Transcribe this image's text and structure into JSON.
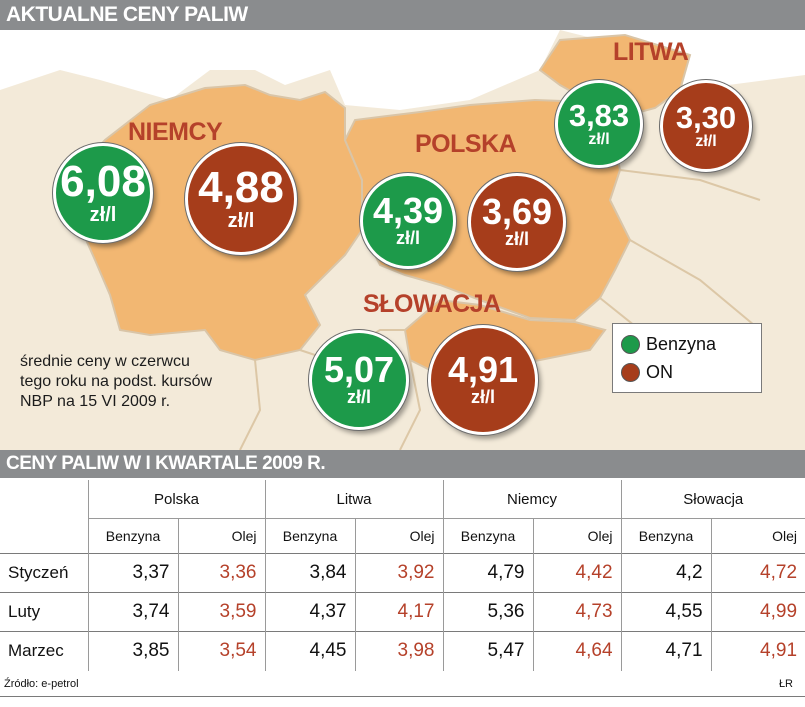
{
  "header": {
    "title": "AKTUALNE CENY PALIW"
  },
  "chart_data": [
    {
      "type": "map-bubbles",
      "title": "AKTUALNE CENY PALIW",
      "unit": "zł/l",
      "countries": [
        {
          "name": "NIEMCY",
          "benzyna": "6,08",
          "on": "4,88"
        },
        {
          "name": "POLSKA",
          "benzyna": "4,39",
          "on": "3,69"
        },
        {
          "name": "LITWA",
          "benzyna": "3,83",
          "on": "3,30"
        },
        {
          "name": "SŁOWACJA",
          "benzyna": "5,07",
          "on": "4,91"
        }
      ],
      "note": "średnie ceny w czerwcu\ntego roku na podst. kursów\nNBP na 15 VI 2009 r.",
      "legend": [
        {
          "label": "Benzyna",
          "color": "#1d9a4a"
        },
        {
          "label": "ON",
          "color": "#a63d1b"
        }
      ]
    },
    {
      "type": "table",
      "title": "CENY PALIW W I KWARTALE 2009 R.",
      "countries": [
        "Polska",
        "Litwa",
        "Niemcy",
        "Słowacja"
      ],
      "fuel_types": [
        "Benzyna",
        "Olej"
      ],
      "rows": [
        {
          "month": "Styczeń",
          "values": [
            "3,37",
            "3,36",
            "3,84",
            "3,92",
            "4,79",
            "4,42",
            "4,2",
            "4,72"
          ]
        },
        {
          "month": "Luty",
          "values": [
            "3,74",
            "3,59",
            "4,37",
            "4,17",
            "5,36",
            "4,73",
            "4,55",
            "4,99"
          ]
        },
        {
          "month": "Marzec",
          "values": [
            "3,85",
            "3,54",
            "4,45",
            "3,98",
            "5,47",
            "4,64",
            "4,71",
            "4,91"
          ]
        }
      ]
    }
  ],
  "footer": {
    "source": "Źródło: e-petrol",
    "credit": "ŁR"
  }
}
